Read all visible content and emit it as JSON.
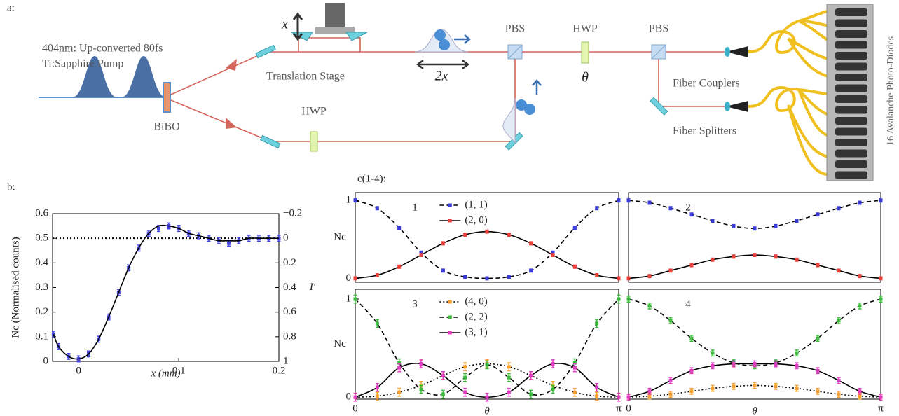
{
  "panels": {
    "a": "a:",
    "b": "b:",
    "c": "c(1-4):"
  },
  "diagram": {
    "pump_line1": "404nm: Up-converted 80fs",
    "pump_line2": "Ti:Sapphire Pump",
    "bibo": "BiBO",
    "stage": "Translation Stage",
    "x": "x",
    "two_x": "2x",
    "pbs1": "PBS",
    "hwp1": "HWP",
    "theta": "θ",
    "pbs2": "PBS",
    "hwp2": "HWP",
    "couplers": "Fiber Couplers",
    "splitters": "Fiber Splitters",
    "apd": "16 Avalanche Photo-Diodes"
  },
  "chart_data": [
    {
      "type": "line",
      "xlabel": "x (mm)",
      "ylabel": "Nc (Normalised counts)",
      "y2label": "I′",
      "xlim": [
        -0.026,
        0.2
      ],
      "xticks": [
        0,
        0.1,
        0.2
      ],
      "ylim": [
        0,
        0.6
      ],
      "yticks": [
        0,
        0.1,
        0.2,
        0.3,
        0.4,
        0.5,
        0.6
      ],
      "y2lim": [
        1,
        -0.2
      ],
      "y2ticks": [
        {
          "value": -0.2,
          "label": "−0.2"
        },
        0,
        0.2,
        0.4,
        0.6,
        0.8,
        1
      ],
      "hline": 0.5,
      "x": [
        -0.025,
        -0.02,
        -0.01,
        0,
        0.01,
        0.02,
        0.03,
        0.04,
        0.05,
        0.06,
        0.07,
        0.08,
        0.09,
        0.1,
        0.11,
        0.12,
        0.13,
        0.14,
        0.15,
        0.16,
        0.17,
        0.18,
        0.19,
        0.2
      ],
      "series": [
        {
          "color": "#4646e0",
          "marker": "square",
          "error": 0.012,
          "values": [
            0.11,
            0.06,
            0.02,
            0.01,
            0.03,
            0.09,
            0.18,
            0.28,
            0.38,
            0.46,
            0.52,
            0.54,
            0.55,
            0.54,
            0.52,
            0.51,
            0.5,
            0.49,
            0.48,
            0.49,
            0.5,
            0.5,
            0.5,
            0.5
          ]
        },
        {
          "color": "#000000",
          "line_style": "solid",
          "values": [
            0.11,
            0.06,
            0.02,
            0.01,
            0.03,
            0.09,
            0.18,
            0.28,
            0.38,
            0.46,
            0.52,
            0.55,
            0.55,
            0.54,
            0.52,
            0.51,
            0.5,
            0.49,
            0.49,
            0.49,
            0.5,
            0.5,
            0.5,
            0.5
          ]
        }
      ]
    },
    {
      "type": "line",
      "title": "1",
      "ylabel": "Nc",
      "legend": "top",
      "xlim": [
        0,
        3.1416
      ],
      "ylim": [
        -0.05,
        1.1
      ],
      "yticks": [
        0,
        1
      ],
      "x": [
        0,
        0.2618,
        0.5236,
        0.7854,
        1.0472,
        1.309,
        1.5708,
        1.8326,
        2.0944,
        2.3562,
        2.618,
        2.8798,
        3.1416
      ],
      "series": [
        {
          "name": "(1, 1)",
          "color": "#3c3cd8",
          "marker": "square",
          "line_style": "dashed",
          "error": 0.02,
          "values": [
            1,
            0.9,
            0.65,
            0.33,
            0.1,
            0.02,
            0,
            0.02,
            0.1,
            0.33,
            0.65,
            0.9,
            1
          ]
        },
        {
          "name": "(2, 0)",
          "color": "#e8413a",
          "marker": "square",
          "line_style": "solid",
          "error": 0.02,
          "values": [
            0,
            0.04,
            0.15,
            0.3,
            0.45,
            0.56,
            0.6,
            0.56,
            0.45,
            0.3,
            0.15,
            0.04,
            0
          ]
        }
      ]
    },
    {
      "type": "line",
      "title": "2",
      "xlim": [
        0,
        3.1416
      ],
      "ylim": [
        -0.05,
        1.1
      ],
      "x": [
        0,
        0.2618,
        0.5236,
        0.7854,
        1.0472,
        1.309,
        1.5708,
        1.8326,
        2.0944,
        2.3562,
        2.618,
        2.8798,
        3.1416
      ],
      "series": [
        {
          "color": "#3c3cd8",
          "marker": "square",
          "line_style": "dashed",
          "error": 0.02,
          "values": [
            1,
            0.97,
            0.9,
            0.82,
            0.74,
            0.67,
            0.64,
            0.67,
            0.74,
            0.82,
            0.9,
            0.97,
            1
          ]
        },
        {
          "color": "#e8413a",
          "marker": "square",
          "line_style": "solid",
          "error": 0.02,
          "values": [
            0,
            0.03,
            0.1,
            0.17,
            0.24,
            0.28,
            0.3,
            0.28,
            0.24,
            0.17,
            0.1,
            0.03,
            0
          ]
        }
      ]
    },
    {
      "type": "line",
      "title": "3",
      "ylabel": "Nc",
      "xlabel": "θ",
      "legend": "top",
      "xlim": [
        0,
        3.1416
      ],
      "ylim": [
        -0.02,
        1.1
      ],
      "yticks": [
        0,
        1
      ],
      "xticks": [
        0,
        {
          "value": 3.1416,
          "label": "π"
        }
      ],
      "x": [
        0,
        0.2618,
        0.5236,
        0.7854,
        1.0472,
        1.309,
        1.5708,
        1.8326,
        2.0944,
        2.3562,
        2.618,
        2.8798,
        3.1416
      ],
      "series": [
        {
          "name": "(4, 0)",
          "color": "#f5a030",
          "marker": "square",
          "line_style": "dotted",
          "error": 0.04,
          "values": [
            0,
            0.01,
            0.05,
            0.12,
            0.22,
            0.31,
            0.34,
            0.31,
            0.22,
            0.12,
            0.05,
            0.01,
            0
          ]
        },
        {
          "name": "(2, 2)",
          "color": "#3cb83c",
          "marker": "square",
          "line_style": "dashed",
          "error": 0.04,
          "values": [
            1,
            0.75,
            0.35,
            0.08,
            0.03,
            0.2,
            0.33,
            0.2,
            0.03,
            0.08,
            0.35,
            0.75,
            1
          ]
        },
        {
          "name": "(3, 1)",
          "color": "#e03cc0",
          "marker": "square",
          "line_style": "solid",
          "error": 0.04,
          "values": [
            0,
            0.1,
            0.3,
            0.34,
            0.22,
            0.05,
            0,
            0.05,
            0.22,
            0.34,
            0.3,
            0.1,
            0
          ]
        }
      ]
    },
    {
      "type": "line",
      "title": "4",
      "xlabel": "θ",
      "xlim": [
        0,
        3.1416
      ],
      "ylim": [
        -0.02,
        1.1
      ],
      "xticks": [
        0,
        {
          "value": 3.1416,
          "label": "π"
        }
      ],
      "x": [
        0,
        0.2618,
        0.5236,
        0.7854,
        1.0472,
        1.309,
        1.5708,
        1.8326,
        2.0944,
        2.3562,
        2.618,
        2.8798,
        3.1416
      ],
      "series": [
        {
          "color": "#f5a030",
          "marker": "square",
          "line_style": "dotted",
          "error": 0.03,
          "values": [
            0,
            0.01,
            0.03,
            0.06,
            0.09,
            0.11,
            0.12,
            0.11,
            0.09,
            0.06,
            0.03,
            0.01,
            0
          ]
        },
        {
          "color": "#3cb83c",
          "marker": "square",
          "line_style": "dashed",
          "error": 0.03,
          "values": [
            1,
            0.93,
            0.78,
            0.6,
            0.45,
            0.35,
            0.32,
            0.35,
            0.45,
            0.6,
            0.78,
            0.93,
            1
          ]
        },
        {
          "color": "#e03cc0",
          "marker": "square",
          "line_style": "solid",
          "error": 0.03,
          "values": [
            0,
            0.06,
            0.17,
            0.27,
            0.32,
            0.34,
            0.34,
            0.34,
            0.32,
            0.27,
            0.17,
            0.06,
            0
          ]
        }
      ]
    }
  ]
}
